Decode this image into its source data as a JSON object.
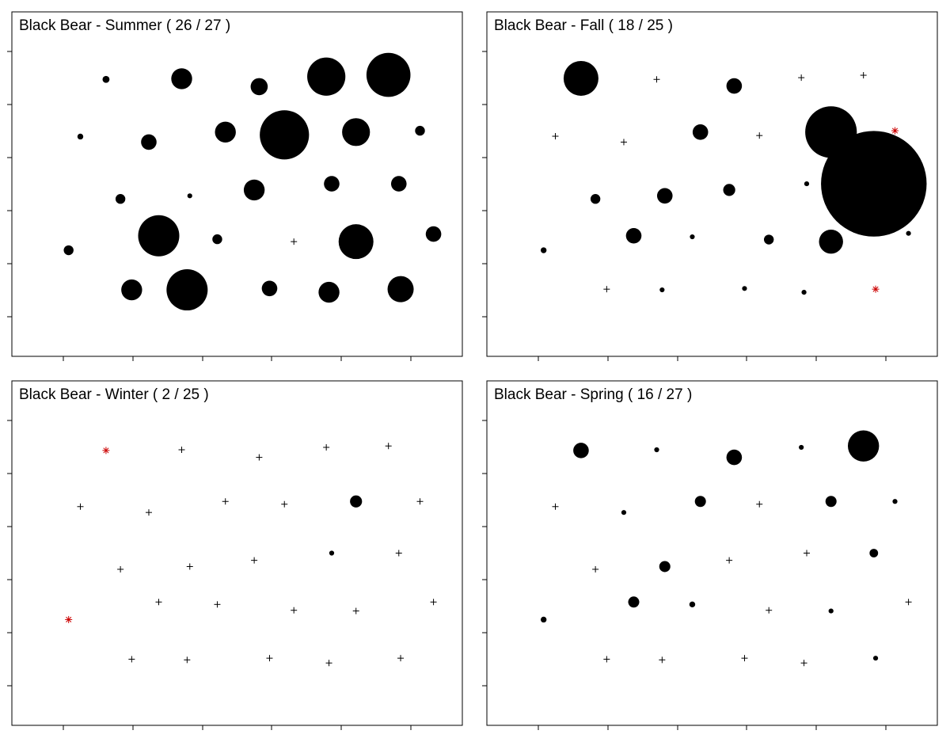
{
  "colors": {
    "detection": "#000000",
    "no_detection": "#000000",
    "inactive": "#cc0000",
    "frame": "#000000",
    "background": "#ffffff"
  },
  "chart_data": [
    {
      "type": "scatter",
      "title": "Black Bear - Summer ( 26 / 27 )",
      "xlim": [
        0,
        100
      ],
      "ylim": [
        0,
        100
      ],
      "grid": false,
      "legend": "none",
      "points": [
        {
          "x": 20.9,
          "y": 80.4,
          "value": 1,
          "status": "detected"
        },
        {
          "x": 37.7,
          "y": 80.6,
          "value": 9,
          "status": "detected"
        },
        {
          "x": 54.9,
          "y": 78.3,
          "value": 6,
          "status": "detected"
        },
        {
          "x": 69.8,
          "y": 81.2,
          "value": 30,
          "status": "detected"
        },
        {
          "x": 83.6,
          "y": 81.7,
          "value": 40,
          "status": "detected"
        },
        {
          "x": 15.2,
          "y": 63.8,
          "value": 0.7,
          "status": "detected"
        },
        {
          "x": 30.4,
          "y": 62.2,
          "value": 5,
          "status": "detected"
        },
        {
          "x": 47.4,
          "y": 65.1,
          "value": 9,
          "status": "detected"
        },
        {
          "x": 60.5,
          "y": 64.3,
          "value": 50,
          "status": "detected"
        },
        {
          "x": 76.4,
          "y": 65.1,
          "value": 16,
          "status": "detected"
        },
        {
          "x": 90.6,
          "y": 65.5,
          "value": 2,
          "status": "detected"
        },
        {
          "x": 24.1,
          "y": 45.7,
          "value": 2,
          "status": "detected"
        },
        {
          "x": 39.5,
          "y": 46.6,
          "value": 0.5,
          "status": "detected"
        },
        {
          "x": 53.8,
          "y": 48.3,
          "value": 9,
          "status": "detected"
        },
        {
          "x": 71.0,
          "y": 50.1,
          "value": 5,
          "status": "detected"
        },
        {
          "x": 85.9,
          "y": 50.1,
          "value": 5,
          "status": "detected"
        },
        {
          "x": 12.6,
          "y": 30.8,
          "value": 2,
          "status": "detected"
        },
        {
          "x": 32.6,
          "y": 35.0,
          "value": 35,
          "status": "detected"
        },
        {
          "x": 45.6,
          "y": 34.0,
          "value": 2,
          "status": "detected"
        },
        {
          "x": 62.6,
          "y": 33.3,
          "value": 0,
          "status": "not-detected"
        },
        {
          "x": 76.4,
          "y": 33.3,
          "value": 25,
          "status": "detected"
        },
        {
          "x": 93.6,
          "y": 35.5,
          "value": 5,
          "status": "detected"
        },
        {
          "x": 26.6,
          "y": 19.3,
          "value": 9,
          "status": "detected"
        },
        {
          "x": 38.9,
          "y": 19.3,
          "value": 35,
          "status": "detected"
        },
        {
          "x": 57.2,
          "y": 19.7,
          "value": 5,
          "status": "detected"
        },
        {
          "x": 70.4,
          "y": 18.6,
          "value": 9,
          "status": "detected"
        },
        {
          "x": 86.3,
          "y": 19.5,
          "value": 14,
          "status": "detected"
        }
      ]
    },
    {
      "type": "scatter",
      "title": "Black Bear - Fall ( 18 / 25 )",
      "xlim": [
        0,
        100
      ],
      "ylim": [
        0,
        100
      ],
      "grid": false,
      "legend": "none",
      "points": [
        {
          "x": 20.9,
          "y": 80.7,
          "value": 25,
          "status": "detected"
        },
        {
          "x": 37.7,
          "y": 80.4,
          "value": 0,
          "status": "not-detected"
        },
        {
          "x": 54.9,
          "y": 78.5,
          "value": 5,
          "status": "detected"
        },
        {
          "x": 69.8,
          "y": 80.9,
          "value": 0,
          "status": "not-detected"
        },
        {
          "x": 83.6,
          "y": 81.6,
          "value": 0,
          "status": "not-detected"
        },
        {
          "x": 15.2,
          "y": 63.9,
          "value": 0,
          "status": "not-detected"
        },
        {
          "x": 30.4,
          "y": 62.2,
          "value": 0,
          "status": "not-detected"
        },
        {
          "x": 47.4,
          "y": 65.1,
          "value": 5,
          "status": "detected"
        },
        {
          "x": 60.5,
          "y": 64.1,
          "value": 0,
          "status": "not-detected"
        },
        {
          "x": 76.4,
          "y": 65.1,
          "value": 55,
          "status": "detected"
        },
        {
          "x": 90.6,
          "y": 65.5,
          "value": 0,
          "status": "inactive"
        },
        {
          "x": 24.1,
          "y": 45.7,
          "value": 2,
          "status": "detected"
        },
        {
          "x": 39.5,
          "y": 46.6,
          "value": 5,
          "status": "detected"
        },
        {
          "x": 53.8,
          "y": 48.3,
          "value": 3,
          "status": "detected"
        },
        {
          "x": 71.0,
          "y": 50.1,
          "value": 0.5,
          "status": "detected"
        },
        {
          "x": 85.9,
          "y": 50.1,
          "value": 230,
          "status": "detected"
        },
        {
          "x": 12.6,
          "y": 30.8,
          "value": 0.7,
          "status": "detected"
        },
        {
          "x": 32.6,
          "y": 35.0,
          "value": 5,
          "status": "detected"
        },
        {
          "x": 45.6,
          "y": 34.7,
          "value": 0.5,
          "status": "detected"
        },
        {
          "x": 62.6,
          "y": 33.9,
          "value": 2,
          "status": "detected"
        },
        {
          "x": 76.4,
          "y": 33.3,
          "value": 12,
          "status": "detected"
        },
        {
          "x": 93.6,
          "y": 35.7,
          "value": 0.5,
          "status": "detected"
        },
        {
          "x": 26.6,
          "y": 19.5,
          "value": 0,
          "status": "not-detected"
        },
        {
          "x": 38.9,
          "y": 19.3,
          "value": 0.5,
          "status": "detected"
        },
        {
          "x": 57.2,
          "y": 19.7,
          "value": 0.5,
          "status": "detected"
        },
        {
          "x": 70.4,
          "y": 18.6,
          "value": 0.5,
          "status": "detected"
        },
        {
          "x": 86.3,
          "y": 19.5,
          "value": 0,
          "status": "inactive"
        }
      ]
    },
    {
      "type": "scatter",
      "title": "Black Bear - Winter ( 2 / 25 )",
      "xlim": [
        0,
        100
      ],
      "ylim": [
        0,
        100
      ],
      "grid": false,
      "legend": "none",
      "points": [
        {
          "x": 20.9,
          "y": 79.8,
          "value": 0,
          "status": "inactive"
        },
        {
          "x": 37.7,
          "y": 80.0,
          "value": 0,
          "status": "not-detected"
        },
        {
          "x": 54.9,
          "y": 77.8,
          "value": 0,
          "status": "not-detected"
        },
        {
          "x": 69.8,
          "y": 80.7,
          "value": 0,
          "status": "not-detected"
        },
        {
          "x": 83.6,
          "y": 81.1,
          "value": 0,
          "status": "not-detected"
        },
        {
          "x": 15.2,
          "y": 63.5,
          "value": 0,
          "status": "not-detected"
        },
        {
          "x": 30.4,
          "y": 61.8,
          "value": 0,
          "status": "not-detected"
        },
        {
          "x": 47.4,
          "y": 65.0,
          "value": 0,
          "status": "not-detected"
        },
        {
          "x": 60.5,
          "y": 64.2,
          "value": 0,
          "status": "not-detected"
        },
        {
          "x": 76.4,
          "y": 65.0,
          "value": 3,
          "status": "detected"
        },
        {
          "x": 90.6,
          "y": 65.0,
          "value": 0,
          "status": "not-detected"
        },
        {
          "x": 24.1,
          "y": 45.3,
          "value": 0,
          "status": "not-detected"
        },
        {
          "x": 39.5,
          "y": 46.1,
          "value": 0,
          "status": "not-detected"
        },
        {
          "x": 53.8,
          "y": 47.9,
          "value": 0,
          "status": "not-detected"
        },
        {
          "x": 71.0,
          "y": 50.0,
          "value": 0.5,
          "status": "detected"
        },
        {
          "x": 85.9,
          "y": 50.0,
          "value": 0,
          "status": "not-detected"
        },
        {
          "x": 12.6,
          "y": 30.7,
          "value": 0,
          "status": "inactive"
        },
        {
          "x": 32.6,
          "y": 35.8,
          "value": 0,
          "status": "not-detected"
        },
        {
          "x": 45.6,
          "y": 35.1,
          "value": 0,
          "status": "not-detected"
        },
        {
          "x": 62.6,
          "y": 33.4,
          "value": 0,
          "status": "not-detected"
        },
        {
          "x": 76.4,
          "y": 33.2,
          "value": 0,
          "status": "not-detected"
        },
        {
          "x": 93.6,
          "y": 35.8,
          "value": 0,
          "status": "not-detected"
        },
        {
          "x": 26.6,
          "y": 19.2,
          "value": 0,
          "status": "not-detected"
        },
        {
          "x": 38.9,
          "y": 19.0,
          "value": 0,
          "status": "not-detected"
        },
        {
          "x": 57.2,
          "y": 19.5,
          "value": 0,
          "status": "not-detected"
        },
        {
          "x": 70.4,
          "y": 18.1,
          "value": 0,
          "status": "not-detected"
        },
        {
          "x": 86.3,
          "y": 19.5,
          "value": 0,
          "status": "not-detected"
        }
      ]
    },
    {
      "type": "scatter",
      "title": "Black Bear - Spring ( 16 / 27 )",
      "xlim": [
        0,
        100
      ],
      "ylim": [
        0,
        100
      ],
      "grid": false,
      "legend": "none",
      "points": [
        {
          "x": 20.9,
          "y": 79.8,
          "value": 5,
          "status": "detected"
        },
        {
          "x": 37.7,
          "y": 80.0,
          "value": 0.5,
          "status": "detected"
        },
        {
          "x": 54.9,
          "y": 77.8,
          "value": 5,
          "status": "detected"
        },
        {
          "x": 69.8,
          "y": 80.7,
          "value": 0.5,
          "status": "detected"
        },
        {
          "x": 83.6,
          "y": 81.1,
          "value": 20,
          "status": "detected"
        },
        {
          "x": 15.2,
          "y": 63.5,
          "value": 0,
          "status": "not-detected"
        },
        {
          "x": 30.4,
          "y": 61.8,
          "value": 0.5,
          "status": "detected"
        },
        {
          "x": 47.4,
          "y": 65.0,
          "value": 2.5,
          "status": "detected"
        },
        {
          "x": 60.5,
          "y": 64.2,
          "value": 0,
          "status": "not-detected"
        },
        {
          "x": 76.4,
          "y": 65.0,
          "value": 2.5,
          "status": "detected"
        },
        {
          "x": 90.6,
          "y": 65.0,
          "value": 0.5,
          "status": "detected"
        },
        {
          "x": 24.1,
          "y": 45.3,
          "value": 0,
          "status": "not-detected"
        },
        {
          "x": 39.5,
          "y": 46.1,
          "value": 2.5,
          "status": "detected"
        },
        {
          "x": 53.8,
          "y": 47.9,
          "value": 0,
          "status": "not-detected"
        },
        {
          "x": 71.0,
          "y": 50.0,
          "value": 0,
          "status": "not-detected"
        },
        {
          "x": 85.9,
          "y": 50.0,
          "value": 1.5,
          "status": "detected"
        },
        {
          "x": 12.6,
          "y": 30.7,
          "value": 0.7,
          "status": "detected"
        },
        {
          "x": 32.6,
          "y": 35.8,
          "value": 2.5,
          "status": "detected"
        },
        {
          "x": 45.6,
          "y": 35.1,
          "value": 0.7,
          "status": "detected"
        },
        {
          "x": 62.6,
          "y": 33.4,
          "value": 0,
          "status": "not-detected"
        },
        {
          "x": 76.4,
          "y": 33.2,
          "value": 0.5,
          "status": "detected"
        },
        {
          "x": 93.6,
          "y": 35.8,
          "value": 0,
          "status": "not-detected"
        },
        {
          "x": 26.6,
          "y": 19.2,
          "value": 0,
          "status": "not-detected"
        },
        {
          "x": 38.9,
          "y": 19.0,
          "value": 0,
          "status": "not-detected"
        },
        {
          "x": 57.2,
          "y": 19.5,
          "value": 0,
          "status": "not-detected"
        },
        {
          "x": 70.4,
          "y": 18.1,
          "value": 0,
          "status": "not-detected"
        },
        {
          "x": 86.3,
          "y": 19.5,
          "value": 0.5,
          "status": "detected"
        }
      ]
    }
  ]
}
